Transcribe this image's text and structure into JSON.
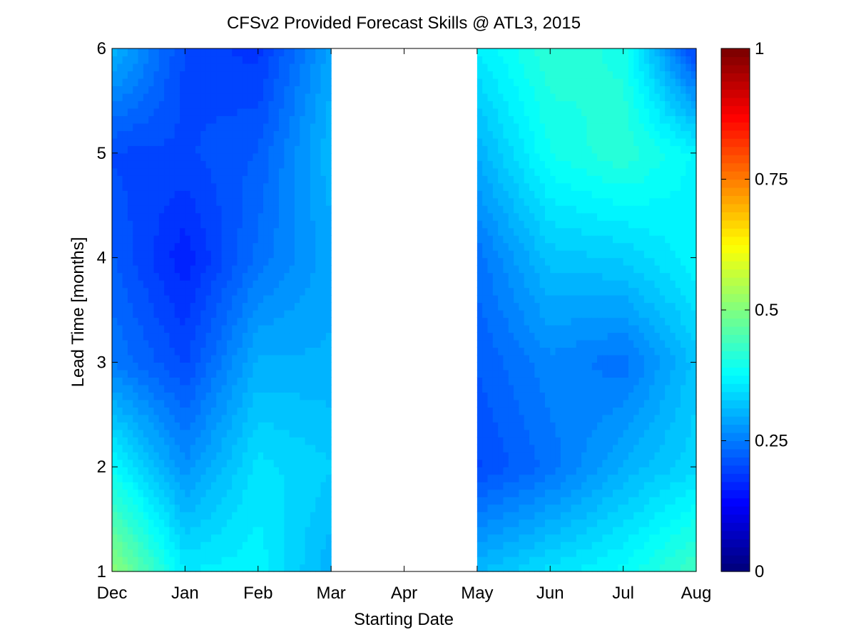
{
  "chart_data": {
    "type": "heatmap",
    "title": "CFSv2 Provided Forecast Skills @ ATL3, 2015",
    "xlabel": "Starting Date",
    "ylabel": "Lead Time [months]",
    "x_categories": [
      "Dec",
      "Jan",
      "Feb",
      "Mar",
      "Apr",
      "May",
      "Jun",
      "Jul",
      "Aug"
    ],
    "y_ticks": [
      1,
      2,
      3,
      4,
      5,
      6
    ],
    "ylim": [
      1,
      6
    ],
    "colorbar": {
      "colormap": "jet",
      "range": [
        0,
        1
      ],
      "tick_values": [
        0,
        0.25,
        0.5,
        0.75,
        1
      ],
      "tick_labels": [
        "0",
        "0.25",
        "0.5",
        "0.75",
        "1"
      ]
    },
    "missing_columns": [
      "Apr"
    ],
    "values": [
      [
        0.52,
        0.36,
        0.37,
        0.3,
        null,
        0.31,
        0.35,
        0.38,
        0.44
      ],
      [
        0.38,
        0.27,
        0.35,
        0.33,
        null,
        0.2,
        0.24,
        0.3,
        0.34
      ],
      [
        0.25,
        0.2,
        0.3,
        0.3,
        null,
        0.22,
        0.26,
        0.24,
        0.32
      ],
      [
        0.22,
        0.16,
        0.24,
        0.29,
        null,
        0.24,
        0.32,
        0.33,
        0.37
      ],
      [
        0.2,
        0.2,
        0.22,
        0.31,
        null,
        0.3,
        0.39,
        0.42,
        0.37
      ],
      [
        0.31,
        0.2,
        0.18,
        0.29,
        null,
        0.36,
        0.42,
        0.4,
        0.19
      ]
    ]
  }
}
